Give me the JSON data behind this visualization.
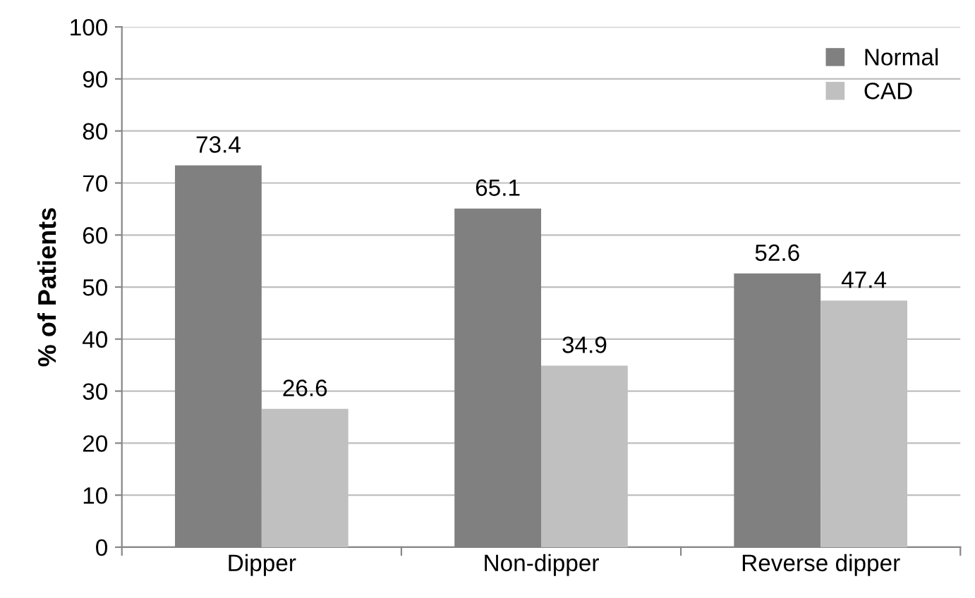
{
  "chart_data": {
    "type": "bar",
    "ylabel": "% of Patients",
    "categories": [
      "Dipper",
      "Non-dipper",
      "Reverse dipper"
    ],
    "series": [
      {
        "name": "Normal",
        "color": "#808080",
        "values": [
          73.4,
          65.1,
          52.6
        ]
      },
      {
        "name": "CAD",
        "color": "#c0c0c0",
        "values": [
          26.6,
          34.9,
          47.4
        ]
      }
    ],
    "ylim": [
      0,
      100
    ],
    "yticks": [
      0,
      10,
      20,
      30,
      40,
      50,
      60,
      70,
      80,
      90,
      100
    ],
    "grid": "y",
    "legend": "top right",
    "data_labels": true
  }
}
